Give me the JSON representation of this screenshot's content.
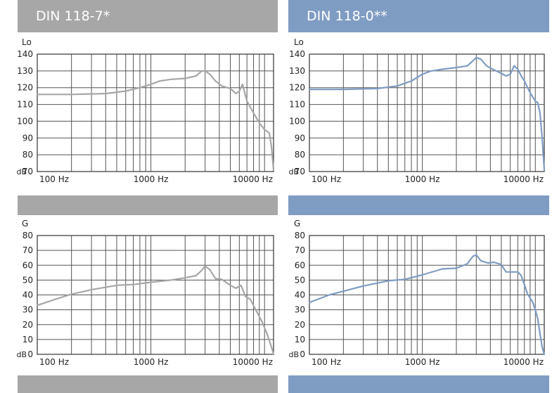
{
  "headers": [
    "DIN 118-7*",
    "DIN 118-0**"
  ],
  "colors": {
    "gray": "#a7a7a7",
    "blue": "#7f9cc3"
  },
  "chart_data": [
    {
      "type": "line",
      "header": "DIN 118-7*",
      "ylabel": "Lo",
      "yunit": "dB",
      "xscale": "log",
      "xlim": [
        100,
        12000
      ],
      "ylim": [
        70,
        140
      ],
      "yticks": [
        70,
        80,
        90,
        100,
        110,
        120,
        130,
        140
      ],
      "xticks": [
        {
          "v": 100,
          "label": "100 Hz"
        },
        {
          "v": 1000,
          "label": "1000 Hz"
        },
        {
          "v": 10000,
          "label": "10000 Hz"
        }
      ],
      "grid": true,
      "color": "#a7a7a7",
      "x": [
        100,
        200,
        400,
        600,
        800,
        1000,
        1200,
        1500,
        2000,
        2500,
        2800,
        3000,
        3300,
        3700,
        4200,
        5000,
        5600,
        6000,
        6400,
        7000,
        8000,
        9000,
        10000,
        11000,
        11500,
        12000
      ],
      "y": [
        116,
        116,
        116.5,
        118,
        120,
        122,
        124,
        125,
        125.5,
        127,
        130,
        130,
        128,
        124,
        121,
        119.5,
        116.5,
        118,
        122,
        112,
        105,
        99,
        95,
        93,
        85,
        71
      ]
    },
    {
      "type": "line",
      "header": "DIN 118-0**",
      "ylabel": "Lo",
      "yunit": "dB",
      "xscale": "log",
      "xlim": [
        100,
        12000
      ],
      "ylim": [
        70,
        140
      ],
      "yticks": [
        70,
        80,
        90,
        100,
        110,
        120,
        130,
        140
      ],
      "xticks": [
        {
          "v": 100,
          "label": "100 Hz"
        },
        {
          "v": 1000,
          "label": "1000 Hz"
        },
        {
          "v": 10000,
          "label": "10000 Hz"
        }
      ],
      "grid": true,
      "color": "#7f9cc3",
      "x": [
        100,
        200,
        400,
        600,
        800,
        1000,
        1200,
        1500,
        2000,
        2500,
        2800,
        3000,
        3300,
        3700,
        4200,
        5000,
        5500,
        6000,
        6500,
        7000,
        7500,
        8000,
        9000,
        10000,
        10500,
        11000,
        11500,
        12000
      ],
      "y": [
        119,
        119,
        119.5,
        121,
        124,
        128,
        130,
        131,
        132,
        133,
        136,
        138,
        137,
        133,
        131,
        128.5,
        127,
        128,
        133,
        131,
        127,
        124,
        117,
        112,
        111,
        105,
        90,
        71
      ]
    },
    {
      "type": "line",
      "header": "G",
      "ylabel": "G",
      "yunit": "dB",
      "xscale": "log",
      "xlim": [
        100,
        12000
      ],
      "ylim": [
        0,
        80
      ],
      "yticks": [
        0,
        10,
        20,
        30,
        40,
        50,
        60,
        70,
        80
      ],
      "xticks": [
        {
          "v": 100,
          "label": "100 Hz"
        },
        {
          "v": 1000,
          "label": "1000 Hz"
        },
        {
          "v": 10000,
          "label": "10000 Hz"
        }
      ],
      "grid": true,
      "color": "#a7a7a7",
      "x": [
        100,
        150,
        200,
        300,
        500,
        700,
        1000,
        1500,
        2000,
        2500,
        2800,
        3000,
        3300,
        3700,
        4200,
        5000,
        5600,
        6200,
        6800,
        7500,
        8500,
        9500,
        10500,
        11500,
        12000
      ],
      "y": [
        33,
        37.5,
        40.5,
        43.5,
        46.5,
        47,
        48.5,
        50,
        51.5,
        53,
        56.5,
        59.5,
        57,
        51,
        50.5,
        46.5,
        44.5,
        46.5,
        39,
        37,
        29,
        22,
        14,
        5,
        0
      ]
    },
    {
      "type": "line",
      "header": "G",
      "ylabel": "G",
      "yunit": "dB",
      "xscale": "log",
      "xlim": [
        100,
        12000
      ],
      "ylim": [
        0,
        80
      ],
      "yticks": [
        0,
        10,
        20,
        30,
        40,
        50,
        60,
        70,
        80
      ],
      "xticks": [
        {
          "v": 100,
          "label": "100 Hz"
        },
        {
          "v": 1000,
          "label": "1000 Hz"
        },
        {
          "v": 10000,
          "label": "10000 Hz"
        }
      ],
      "grid": true,
      "color": "#7f9cc3",
      "x": [
        100,
        150,
        200,
        300,
        500,
        700,
        1000,
        1500,
        2000,
        2500,
        2800,
        3000,
        3300,
        3800,
        4300,
        5000,
        5500,
        6200,
        7000,
        7500,
        8000,
        8500,
        9500,
        10000,
        10500,
        11000,
        11500,
        12000
      ],
      "y": [
        35,
        40,
        42.5,
        46,
        49.5,
        50.5,
        53.5,
        57.5,
        58,
        61,
        66,
        67,
        63,
        61.5,
        62,
        60.5,
        55.5,
        55.5,
        55.5,
        53,
        47,
        41,
        35,
        30,
        24,
        14,
        5,
        0
      ]
    }
  ]
}
